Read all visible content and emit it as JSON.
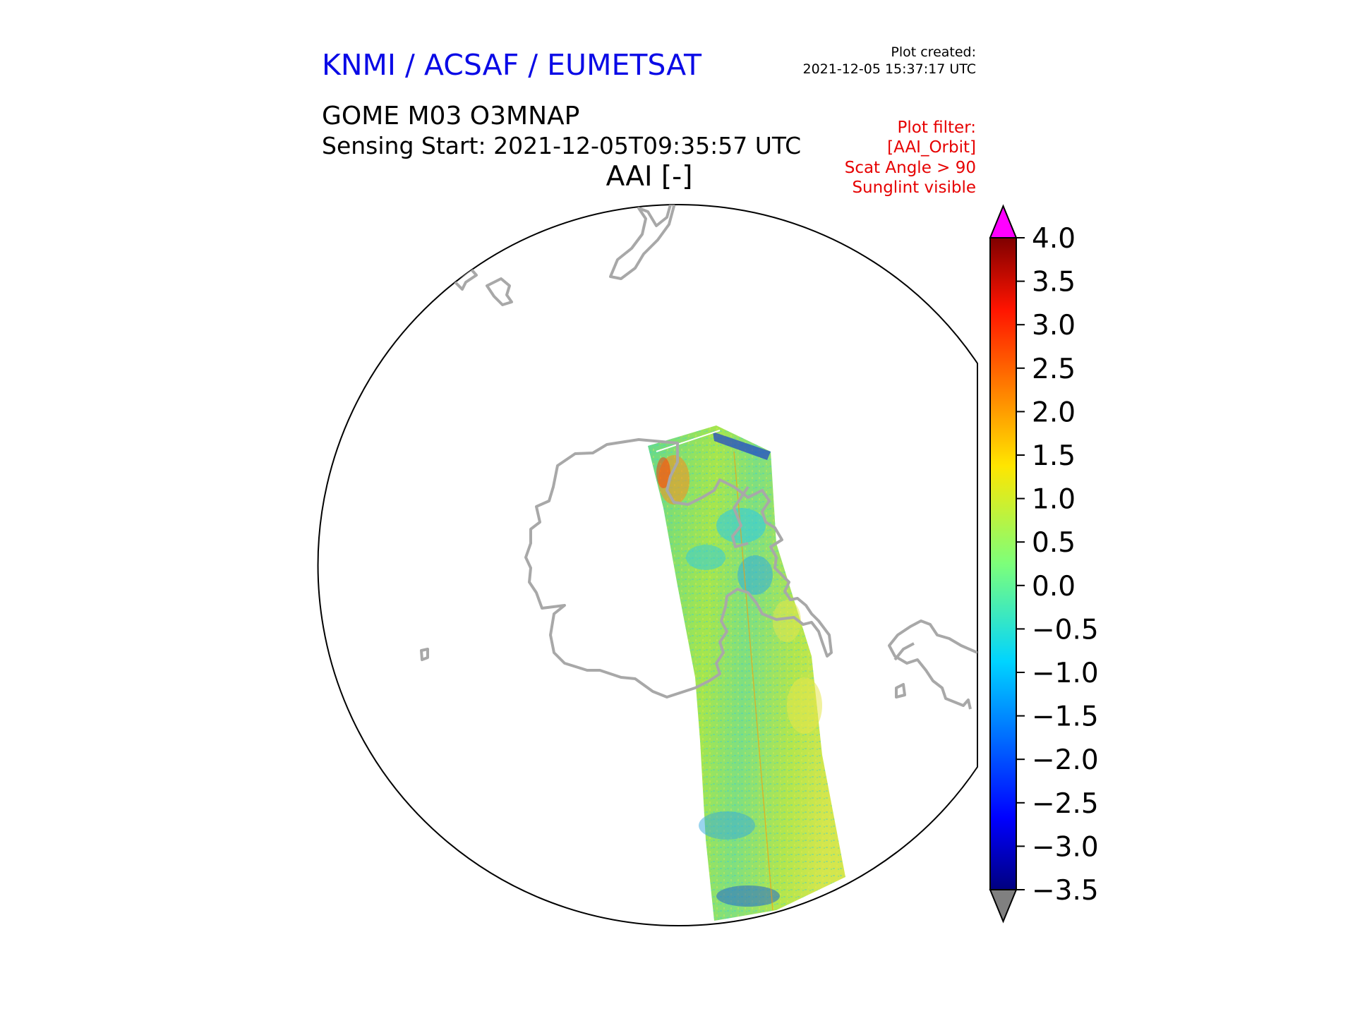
{
  "header": {
    "org": "KNMI / ACSAF / EUMETSAT",
    "org_color": "#0a0ae6",
    "plot_created_label": "Plot created:",
    "plot_created_time": "2021-12-05 15:37:17 UTC",
    "product": "GOME M03 O3MNAP",
    "sensing_start": "Sensing Start: 2021-12-05T09:35:57 UTC"
  },
  "map": {
    "title": "AAI [-]",
    "projection": "south-polar orthographic",
    "coastline_color": "#a8a8a8",
    "swath_colors": [
      "#66d98c",
      "#a6e64d",
      "#4cd9b3",
      "#33ccdd",
      "#e6e64d"
    ]
  },
  "filters": {
    "color": "#e60000",
    "lines": [
      "Plot filter:",
      "[AAI_Orbit]",
      "Scat Angle > 90",
      "Sunglint visible"
    ]
  },
  "colorbar": {
    "ticks": [
      "4.0",
      "3.5",
      "3.0",
      "2.5",
      "2.0",
      "1.5",
      "1.0",
      "0.5",
      "0.0",
      "−0.5",
      "−1.0",
      "−1.5",
      "−2.0",
      "−2.5",
      "−3.0",
      "−3.5"
    ],
    "min": -3.5,
    "max": 4.0,
    "over_color": "#ff00ff",
    "under_color": "#808080",
    "colormap": "jet"
  }
}
